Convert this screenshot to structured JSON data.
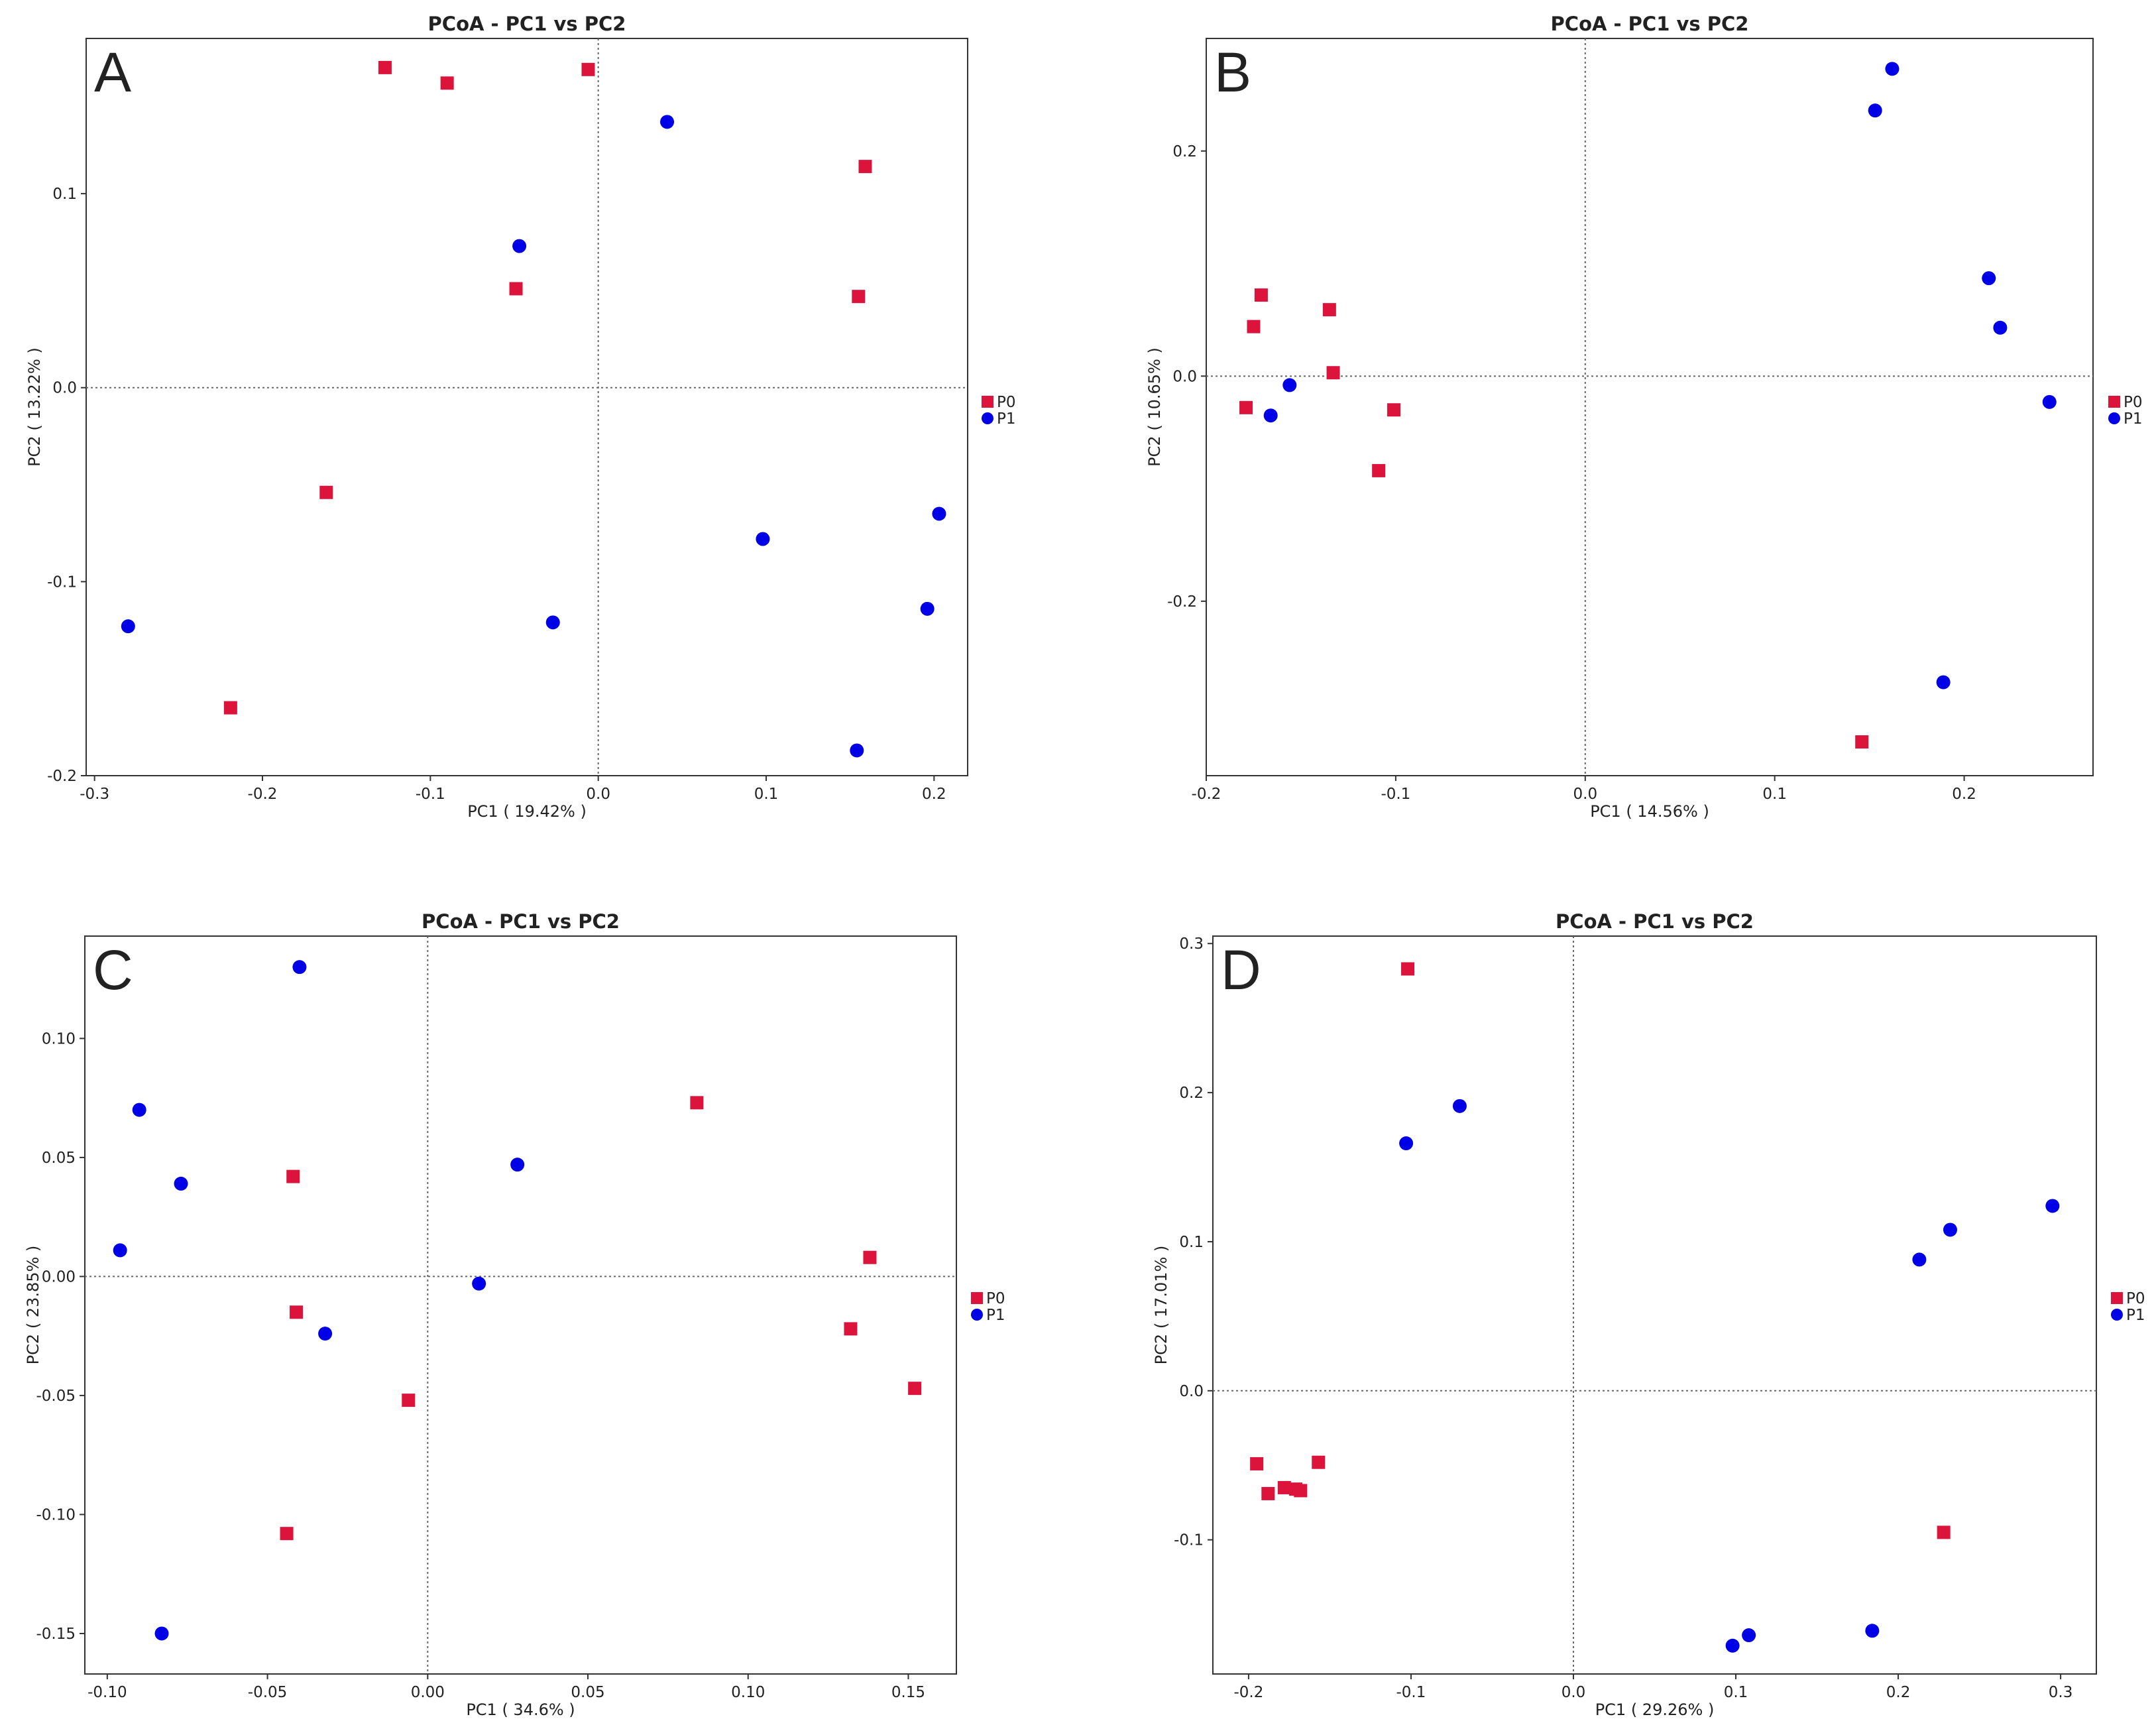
{
  "colors": {
    "P0": "#DC143C",
    "P1": "#0000E6"
  },
  "legend": [
    {
      "label": "P0",
      "shape": "square"
    },
    {
      "label": "P1",
      "shape": "circle"
    }
  ],
  "chart_data": [
    {
      "panel": "A",
      "type": "scatter",
      "title": "PCoA - PC1 vs PC2",
      "xlabel": "PC1 ( 19.42% )",
      "ylabel": "PC2 ( 13.22% )",
      "xlim": [
        -0.305,
        0.22
      ],
      "ylim": [
        -0.2,
        0.18
      ],
      "xticks": [
        -0.3,
        -0.2,
        -0.1,
        0.0,
        0.1,
        0.2
      ],
      "xtick_labels": [
        "-0.3",
        "-0.2",
        "-0.1",
        "0.0",
        "0.1",
        "0.2"
      ],
      "yticks": [
        -0.2,
        -0.1,
        0.0,
        0.1
      ],
      "ytick_labels": [
        "-0.2",
        "-0.1",
        "0.0",
        "0.1"
      ],
      "series": [
        {
          "name": "P0",
          "points": [
            [
              -0.127,
              0.165
            ],
            [
              -0.09,
              0.157
            ],
            [
              -0.006,
              0.164
            ],
            [
              0.159,
              0.114
            ],
            [
              -0.049,
              0.051
            ],
            [
              0.155,
              0.047
            ],
            [
              -0.162,
              -0.054
            ],
            [
              -0.219,
              -0.165
            ]
          ]
        },
        {
          "name": "P1",
          "points": [
            [
              0.041,
              0.137
            ],
            [
              -0.047,
              0.073
            ],
            [
              0.098,
              -0.078
            ],
            [
              0.203,
              -0.065
            ],
            [
              0.196,
              -0.114
            ],
            [
              -0.027,
              -0.121
            ],
            [
              -0.28,
              -0.123
            ],
            [
              0.154,
              -0.187
            ]
          ]
        }
      ]
    },
    {
      "panel": "B",
      "type": "scatter",
      "title": "PCoA - PC1 vs PC2",
      "xlabel": "PC1 ( 14.56% )",
      "ylabel": "PC2 ( 10.65% )",
      "xlim": [
        -0.2,
        0.268
      ],
      "ylim": [
        -0.355,
        0.3
      ],
      "xticks": [
        -0.2,
        -0.1,
        0.0,
        0.1,
        0.2
      ],
      "xtick_labels": [
        "-0.2",
        "-0.1",
        "0.0",
        "0.1",
        "0.2"
      ],
      "yticks": [
        -0.2,
        0.0,
        0.2
      ],
      "ytick_labels": [
        "-0.2",
        "0.0",
        "0.2"
      ],
      "series": [
        {
          "name": "P0",
          "points": [
            [
              -0.171,
              0.072
            ],
            [
              -0.175,
              0.044
            ],
            [
              -0.135,
              0.059
            ],
            [
              -0.133,
              0.003
            ],
            [
              -0.179,
              -0.028
            ],
            [
              -0.101,
              -0.03
            ],
            [
              -0.109,
              -0.084
            ],
            [
              0.146,
              -0.325
            ]
          ]
        },
        {
          "name": "P1",
          "points": [
            [
              0.162,
              0.273
            ],
            [
              0.153,
              0.236
            ],
            [
              0.213,
              0.087
            ],
            [
              0.219,
              0.043
            ],
            [
              0.245,
              -0.023
            ],
            [
              -0.156,
              -0.008
            ],
            [
              -0.166,
              -0.035
            ],
            [
              0.189,
              -0.272
            ]
          ]
        }
      ]
    },
    {
      "panel": "C",
      "type": "scatter",
      "title": "PCoA - PC1 vs PC2",
      "xlabel": "PC1 ( 34.6% )",
      "ylabel": "PC2 ( 23.85% )",
      "xlim": [
        -0.107,
        0.165
      ],
      "ylim": [
        -0.167,
        0.143
      ],
      "xticks": [
        -0.1,
        -0.05,
        0.0,
        0.05,
        0.1,
        0.15
      ],
      "xtick_labels": [
        "-0.10",
        "-0.05",
        "0.00",
        "0.05",
        "0.10",
        "0.15"
      ],
      "yticks": [
        -0.15,
        -0.1,
        -0.05,
        0.0,
        0.05,
        0.1
      ],
      "ytick_labels": [
        "-0.15",
        "-0.10",
        "-0.05",
        "0.00",
        "0.05",
        "0.10"
      ],
      "series": [
        {
          "name": "P0",
          "points": [
            [
              0.084,
              0.073
            ],
            [
              -0.042,
              0.042
            ],
            [
              0.138,
              0.008
            ],
            [
              -0.041,
              -0.015
            ],
            [
              0.132,
              -0.022
            ],
            [
              0.152,
              -0.047
            ],
            [
              -0.006,
              -0.052
            ],
            [
              -0.044,
              -0.108
            ]
          ]
        },
        {
          "name": "P1",
          "points": [
            [
              -0.04,
              0.13
            ],
            [
              -0.09,
              0.07
            ],
            [
              -0.077,
              0.039
            ],
            [
              0.028,
              0.047
            ],
            [
              -0.096,
              0.011
            ],
            [
              0.016,
              -0.003
            ],
            [
              -0.032,
              -0.024
            ],
            [
              -0.083,
              -0.15
            ]
          ]
        }
      ]
    },
    {
      "panel": "D",
      "type": "scatter",
      "title": "PCoA - PC1 vs PC2",
      "xlabel": "PC1 ( 29.26% )",
      "ylabel": "PC2 ( 17.01% )",
      "xlim": [
        -0.222,
        0.322
      ],
      "ylim": [
        -0.19,
        0.305
      ],
      "xticks": [
        -0.2,
        -0.1,
        0.0,
        0.1,
        0.2,
        0.3
      ],
      "xtick_labels": [
        "-0.2",
        "-0.1",
        "0.0",
        "0.1",
        "0.2",
        "0.3"
      ],
      "yticks": [
        -0.1,
        0.0,
        0.1,
        0.2,
        0.3
      ],
      "ytick_labels": [
        "-0.1",
        "0.0",
        "0.1",
        "0.2",
        "0.3"
      ],
      "series": [
        {
          "name": "P0",
          "points": [
            [
              -0.102,
              0.283
            ],
            [
              -0.195,
              -0.049
            ],
            [
              -0.157,
              -0.048
            ],
            [
              -0.178,
              -0.065
            ],
            [
              -0.188,
              -0.069
            ],
            [
              -0.168,
              -0.067
            ],
            [
              -0.171,
              -0.066
            ],
            [
              0.228,
              -0.095
            ]
          ]
        },
        {
          "name": "P1",
          "points": [
            [
              -0.07,
              0.191
            ],
            [
              -0.103,
              0.166
            ],
            [
              0.295,
              0.124
            ],
            [
              0.232,
              0.108
            ],
            [
              0.213,
              0.088
            ],
            [
              0.184,
              -0.161
            ],
            [
              0.108,
              -0.164
            ],
            [
              0.098,
              -0.171
            ]
          ]
        }
      ]
    }
  ]
}
